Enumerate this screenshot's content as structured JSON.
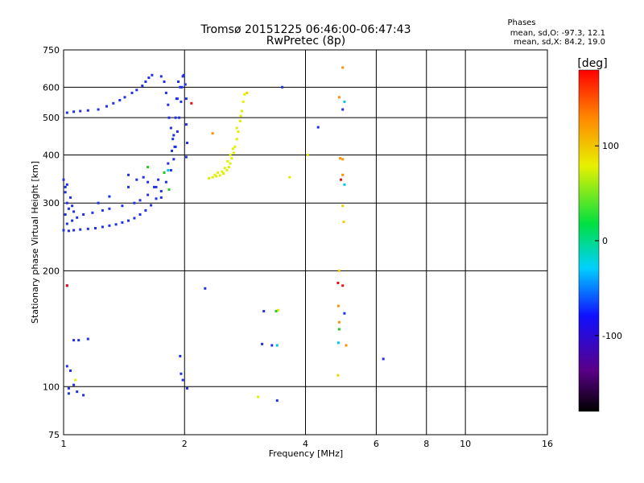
{
  "chart_data": {
    "type": "scatter",
    "title": "Tromsø 20151225 06:46:00-06:47:43",
    "subtitle": "RwPretec (8p)",
    "xlabel": "Frequency [MHz]",
    "ylabel": "Stationary phase Virtual Height [km]",
    "x_scale": "log2",
    "y_scale": "log",
    "xlim": [
      1,
      16
    ],
    "ylim": [
      75,
      750
    ],
    "x_ticks": [
      "1",
      "2",
      "4",
      "6",
      "8",
      "10",
      "16"
    ],
    "x_tick_values": [
      1,
      2,
      4,
      6,
      8,
      10,
      16
    ],
    "y_ticks": [
      "75",
      "100",
      "200",
      "300",
      "400",
      "500",
      "600",
      "750"
    ],
    "y_tick_values": [
      75,
      100,
      200,
      300,
      400,
      500,
      600,
      750
    ],
    "grid": true,
    "phase_annotation": {
      "heading": "Phases",
      "line_o": "mean, sd,O: -97.3, 12.1",
      "line_x": "mean, sd,X:  84.2, 19.0"
    },
    "colorbar": {
      "label": "[deg]",
      "range": [
        -180,
        180
      ],
      "ticks": [
        "100",
        "0",
        "-100"
      ],
      "tick_values": [
        100,
        0,
        -100
      ]
    },
    "colors": {
      "o_mode": "#2030e6",
      "x_mode": "#e0f000",
      "green": "#20c820",
      "red": "#e61010",
      "orange": "#ff9000",
      "cyan": "#00c8d8",
      "yellow": "#f0d000"
    },
    "series": [
      {
        "mode": "O",
        "color_key": "o_mode",
        "phase_mean": -97.3,
        "points": [
          [
            1.0,
            255
          ],
          [
            1.03,
            254
          ],
          [
            1.06,
            255
          ],
          [
            1.1,
            256
          ],
          [
            1.15,
            257
          ],
          [
            1.2,
            258
          ],
          [
            1.25,
            260
          ],
          [
            1.3,
            262
          ],
          [
            1.35,
            264
          ],
          [
            1.4,
            267
          ],
          [
            1.45,
            270
          ],
          [
            1.5,
            274
          ],
          [
            1.55,
            280
          ],
          [
            1.6,
            287
          ],
          [
            1.65,
            296
          ],
          [
            1.7,
            308
          ],
          [
            1.75,
            322
          ],
          [
            1.8,
            340
          ],
          [
            1.85,
            365
          ],
          [
            1.88,
            390
          ],
          [
            1.9,
            420
          ],
          [
            1.92,
            460
          ],
          [
            1.94,
            500
          ],
          [
            1.96,
            550
          ],
          [
            1.97,
            600
          ],
          [
            1.98,
            640
          ],
          [
            1.02,
            265
          ],
          [
            1.05,
            270
          ],
          [
            1.08,
            275
          ],
          [
            1.12,
            280
          ],
          [
            1.18,
            283
          ],
          [
            1.25,
            287
          ],
          [
            1.3,
            290
          ],
          [
            1.4,
            295
          ],
          [
            1.5,
            300
          ],
          [
            1.55,
            305
          ],
          [
            1.62,
            315
          ],
          [
            1.68,
            330
          ],
          [
            1.72,
            345
          ],
          [
            1.78,
            360
          ],
          [
            1.82,
            380
          ],
          [
            1.86,
            410
          ],
          [
            1.88,
            450
          ],
          [
            1.9,
            500
          ],
          [
            1.92,
            560
          ],
          [
            1.93,
            620
          ],
          [
            1.01,
            280
          ],
          [
            1.03,
            290
          ],
          [
            1.02,
            300
          ],
          [
            1.04,
            310
          ],
          [
            1.01,
            320
          ],
          [
            1.02,
            335
          ],
          [
            1.0,
            345
          ],
          [
            1.01,
            330
          ],
          [
            1.05,
            295
          ],
          [
            1.06,
            285
          ],
          [
            1.02,
            515
          ],
          [
            1.06,
            518
          ],
          [
            1.1,
            520
          ],
          [
            1.15,
            522
          ],
          [
            1.22,
            525
          ],
          [
            1.28,
            535
          ],
          [
            1.33,
            545
          ],
          [
            1.38,
            555
          ],
          [
            1.42,
            565
          ],
          [
            1.48,
            580
          ],
          [
            1.52,
            590
          ],
          [
            1.57,
            605
          ],
          [
            1.6,
            620
          ],
          [
            1.63,
            635
          ],
          [
            1.66,
            645
          ],
          [
            1.75,
            640
          ],
          [
            1.78,
            620
          ],
          [
            1.8,
            580
          ],
          [
            1.82,
            540
          ],
          [
            1.83,
            500
          ],
          [
            1.85,
            470
          ],
          [
            1.87,
            440
          ],
          [
            1.89,
            420
          ],
          [
            1.91,
            560
          ],
          [
            1.95,
            600
          ],
          [
            1.99,
            645
          ],
          [
            2.01,
            610
          ],
          [
            2.02,
            560
          ],
          [
            2.02,
            480
          ],
          [
            2.03,
            430
          ],
          [
            2.02,
            395
          ],
          [
            1.22,
            300
          ],
          [
            1.3,
            312
          ],
          [
            1.45,
            330
          ],
          [
            1.52,
            345
          ],
          [
            1.58,
            350
          ],
          [
            1.45,
            355
          ],
          [
            1.62,
            340
          ],
          [
            1.7,
            330
          ],
          [
            1.75,
            310
          ],
          [
            1.02,
            183
          ],
          [
            1.06,
            132
          ],
          [
            1.09,
            132
          ],
          [
            1.15,
            133
          ],
          [
            1.02,
            113
          ],
          [
            1.04,
            110
          ],
          [
            1.06,
            101
          ],
          [
            1.03,
            99
          ],
          [
            1.08,
            97
          ],
          [
            1.12,
            95
          ],
          [
            1.03,
            96
          ],
          [
            1.96,
            108
          ],
          [
            1.98,
            104
          ],
          [
            2.03,
            99
          ],
          [
            2.25,
            180
          ],
          [
            1.95,
            120
          ],
          [
            3.15,
            157
          ],
          [
            3.12,
            129
          ],
          [
            3.3,
            128
          ],
          [
            3.4,
            92
          ],
          [
            3.5,
            600
          ],
          [
            4.3,
            472
          ],
          [
            4.95,
            525
          ],
          [
            5.0,
            155
          ],
          [
            6.25,
            118
          ]
        ]
      },
      {
        "mode": "X",
        "color_key": "x_mode",
        "phase_mean": 84.2,
        "points": [
          [
            2.3,
            348
          ],
          [
            2.35,
            350
          ],
          [
            2.4,
            352
          ],
          [
            2.45,
            354
          ],
          [
            2.5,
            358
          ],
          [
            2.55,
            365
          ],
          [
            2.58,
            372
          ],
          [
            2.6,
            380
          ],
          [
            2.62,
            392
          ],
          [
            2.65,
            405
          ],
          [
            2.67,
            420
          ],
          [
            2.7,
            440
          ],
          [
            2.72,
            460
          ],
          [
            2.75,
            490
          ],
          [
            2.78,
            520
          ],
          [
            2.8,
            550
          ],
          [
            2.82,
            575
          ],
          [
            2.38,
            355
          ],
          [
            2.42,
            360
          ],
          [
            2.48,
            362
          ],
          [
            2.52,
            370
          ],
          [
            2.56,
            385
          ],
          [
            2.6,
            400
          ],
          [
            2.64,
            415
          ],
          [
            2.7,
            470
          ],
          [
            2.76,
            505
          ],
          [
            1.07,
            104
          ],
          [
            3.05,
            94
          ],
          [
            3.42,
            158
          ],
          [
            3.65,
            350
          ],
          [
            4.05,
            400
          ]
        ]
      },
      {
        "mode": "other",
        "color_key": "orange",
        "phase_mean": 160,
        "points": [
          [
            4.85,
            565
          ],
          [
            4.88,
            392
          ],
          [
            4.83,
            162
          ],
          [
            4.85,
            147
          ],
          [
            4.95,
            675
          ],
          [
            4.95,
            390
          ],
          [
            4.95,
            355
          ],
          [
            5.05,
            128
          ],
          [
            2.35,
            455
          ]
        ]
      },
      {
        "mode": "other",
        "color_key": "red",
        "phase_mean": 175,
        "points": [
          [
            4.82,
            186
          ],
          [
            4.95,
            183
          ],
          [
            1.02,
            183
          ],
          [
            4.9,
            345
          ],
          [
            2.08,
            545
          ]
        ]
      },
      {
        "mode": "other",
        "color_key": "cyan",
        "phase_mean": -30,
        "points": [
          [
            5.0,
            550
          ],
          [
            3.4,
            128
          ],
          [
            1.82,
            365
          ],
          [
            4.83,
            130
          ],
          [
            5.0,
            335
          ]
        ]
      },
      {
        "mode": "other",
        "color_key": "green",
        "phase_mean": 30,
        "points": [
          [
            1.62,
            372
          ],
          [
            1.78,
            360
          ],
          [
            3.38,
            157
          ],
          [
            4.85,
            141
          ],
          [
            1.83,
            325
          ]
        ]
      },
      {
        "mode": "other",
        "color_key": "yellow",
        "phase_mean": 90,
        "points": [
          [
            4.85,
            200
          ],
          [
            4.82,
            107
          ],
          [
            4.95,
            295
          ],
          [
            4.98,
            268
          ],
          [
            2.86,
            580
          ]
        ]
      }
    ]
  }
}
